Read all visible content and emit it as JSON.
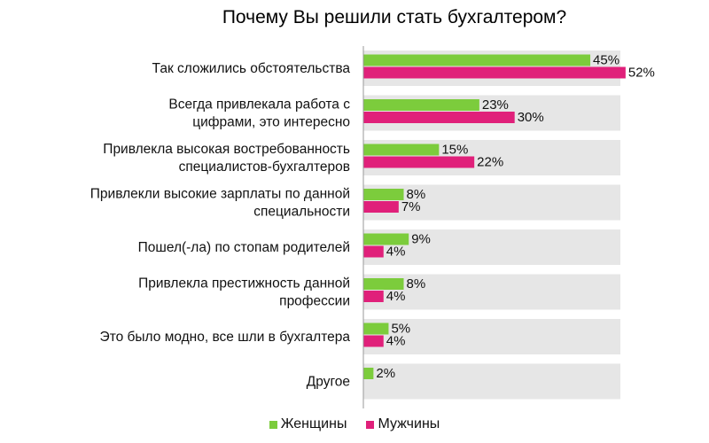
{
  "chart_data": {
    "type": "bar",
    "orientation": "horizontal",
    "title": "Почему Вы решили стать бухгалтером?",
    "categories": [
      [
        "Так сложились обстоятельства"
      ],
      [
        "Всегда привлекала работа с",
        "цифрами, это интересно"
      ],
      [
        "Привлекла высокая востребованность",
        "специалистов-бухгалтеров"
      ],
      [
        "Привлекли высокие зарплаты по данной",
        "специальности"
      ],
      [
        "Пошел(-ла) по стопам родителей"
      ],
      [
        "Привлекла престижность данной",
        "профессии"
      ],
      [
        "Это было модно, все шли в бухгалтера"
      ],
      [
        "Другое"
      ]
    ],
    "series": [
      {
        "name": "Женщины",
        "color": "#7ccc3c",
        "values": [
          45,
          23,
          15,
          8,
          9,
          8,
          5,
          2
        ]
      },
      {
        "name": "Мужчины",
        "color": "#e0207a",
        "values": [
          52,
          30,
          22,
          7,
          4,
          4,
          4,
          null
        ]
      }
    ],
    "value_suffix": "%",
    "legend_position": "bottom",
    "grid": false,
    "category_panel_color": "#e6e6e6"
  }
}
